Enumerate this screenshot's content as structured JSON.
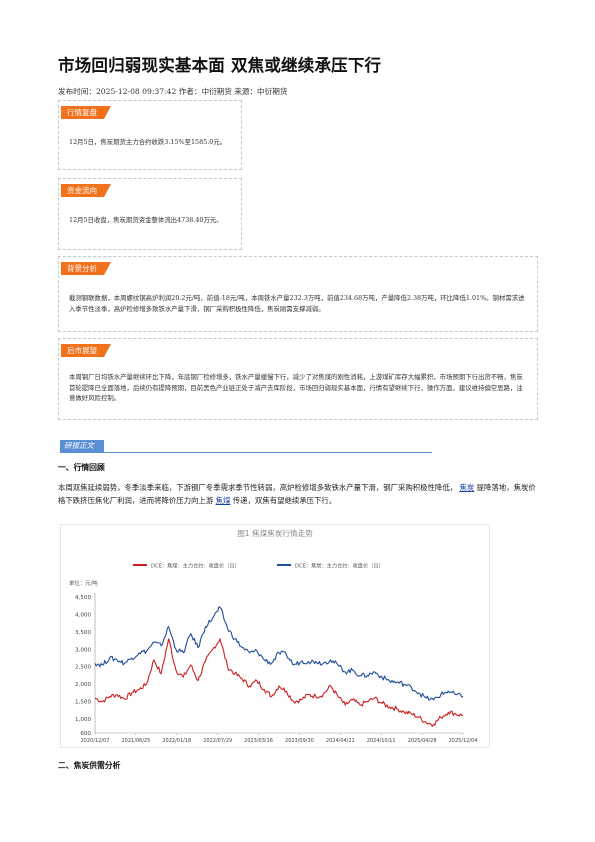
{
  "article": {
    "title": "市场回归弱现实基本面 双焦或继续承压下行",
    "meta_prefix": "发布时间：",
    "meta_time": "2025-12-08 09:37:42",
    "meta_rest": " 作者：中衍期货 来源：中衍期货"
  },
  "boxes": [
    {
      "tag": "行情复盘",
      "text": "12月5日，焦炭期货主力合约收跌3.15%至1585.0元。"
    },
    {
      "tag": "资金流向",
      "text": "12月5日收盘，焦炭期货资金整体流出4738.40万元。"
    },
    {
      "tag": "背景分析",
      "text": "截测钢联数据，本周螺纹钢高炉利润20.2元/吨，前值-18元/吨，本周铁水产量232.3万吨，前值234.68万吨，产量降低2.38万吨，环比降低1.01%。钢材需求进入季节性淡季，高炉检修增多致铁水产量下滑，钢厂采购积极性降低，焦炭刚需支撑减弱。"
    },
    {
      "tag": "后市展望",
      "text": "本周钢厂日均铁水产量继续环比下降，年底钢厂检修增多，铁水产量缓慢下行，减少了对焦煤的刚性消耗，上游煤矿库存大幅累积，市场预期下行出货不畅，焦炭首轮提降已全面落地，后续仍有提降预期，目前黑色产业链正处于减产去库阶段，市场回归弱现实基本面，行情有望继续下行，操作方面，建议维持偏空思路，注意做好风险控制。"
    }
  ],
  "report_header": "研报正文",
  "section1": {
    "title": "一、行情回顾",
    "p1": "本周双焦延续弱势，冬季淡季来临，下游钢厂冬季需求季节性转弱，高炉检修增多致铁水产量下滑，钢厂采购积极性降低，",
    "link1": "焦炭",
    "p2": "提降落地，焦炭价格下跌挤压焦化厂利润，进而将降价压力向上游",
    "link2": "焦煤",
    "p3": "传递，双焦有望继续承压下行。"
  },
  "section2": {
    "title": "二、焦炭供需分析"
  },
  "chart_data": {
    "type": "line",
    "title": "图1 焦煤焦炭行情走势",
    "unit_label": "单位：元/吨",
    "ylim": [
      600,
      4500
    ],
    "yticks": [
      "4,500",
      "4,000",
      "3,500",
      "3,000",
      "2,500",
      "2,000",
      "1,500",
      "1,000",
      "600"
    ],
    "xticks": [
      "2020/12/07",
      "2021/06/25",
      "2022/01/18",
      "2022/07/29",
      "2023/03/16",
      "2023/09/30",
      "2024/04/21",
      "2024/10/11",
      "2025/04/28",
      "2025/12/04"
    ],
    "colors": {
      "red": "#cc1f1f",
      "blue": "#1f4e99"
    },
    "series": [
      {
        "name": "DCE：焦煤：主力合约：收盘价（日）",
        "color": "#cc1f1f",
        "x": [
          0,
          0.02,
          0.04,
          0.06,
          0.08,
          0.1,
          0.12,
          0.14,
          0.16,
          0.18,
          0.2,
          0.22,
          0.24,
          0.26,
          0.28,
          0.3,
          0.32,
          0.34,
          0.36,
          0.38,
          0.4,
          0.42,
          0.44,
          0.46,
          0.48,
          0.5,
          0.52,
          0.54,
          0.56,
          0.58,
          0.6,
          0.62,
          0.64,
          0.66,
          0.68,
          0.7,
          0.72,
          0.74,
          0.76,
          0.78,
          0.8,
          0.82,
          0.84,
          0.86,
          0.88,
          0.9,
          0.92,
          0.94,
          0.96,
          0.98,
          1.0
        ],
        "values": [
          1600,
          1500,
          1650,
          1700,
          1580,
          1750,
          1850,
          2000,
          2700,
          2300,
          3300,
          2400,
          2200,
          2550,
          2100,
          2650,
          3000,
          3300,
          2500,
          2300,
          2150,
          1950,
          2100,
          1850,
          1650,
          1950,
          1800,
          1500,
          1550,
          1700,
          1650,
          1700,
          1950,
          1650,
          1400,
          1550,
          1400,
          1500,
          1600,
          1450,
          1350,
          1300,
          1200,
          1150,
          1050,
          900,
          850,
          1050,
          1200,
          1150,
          1100
        ]
      },
      {
        "name": "DCE：焦炭：主力合约：收盘价（日）",
        "color": "#1f4e99",
        "x": [
          0,
          0.02,
          0.04,
          0.06,
          0.08,
          0.1,
          0.12,
          0.14,
          0.16,
          0.18,
          0.2,
          0.22,
          0.24,
          0.26,
          0.28,
          0.3,
          0.32,
          0.34,
          0.36,
          0.38,
          0.4,
          0.42,
          0.44,
          0.46,
          0.48,
          0.5,
          0.52,
          0.54,
          0.56,
          0.58,
          0.6,
          0.62,
          0.64,
          0.66,
          0.68,
          0.7,
          0.72,
          0.74,
          0.76,
          0.78,
          0.8,
          0.82,
          0.84,
          0.86,
          0.88,
          0.9,
          0.92,
          0.94,
          0.96,
          0.98,
          1.0
        ],
        "values": [
          2600,
          2550,
          2750,
          2700,
          2600,
          2750,
          2900,
          2950,
          3200,
          3100,
          3650,
          3000,
          2900,
          3450,
          3050,
          3650,
          3900,
          4200,
          3600,
          3300,
          3050,
          2900,
          2950,
          2700,
          2600,
          2900,
          2850,
          2550,
          2650,
          2650,
          2650,
          2600,
          2700,
          2550,
          2350,
          2400,
          2250,
          2250,
          2350,
          2200,
          2100,
          2050,
          2000,
          1900,
          1750,
          1600,
          1550,
          1700,
          1800,
          1700,
          1650
        ]
      }
    ]
  }
}
